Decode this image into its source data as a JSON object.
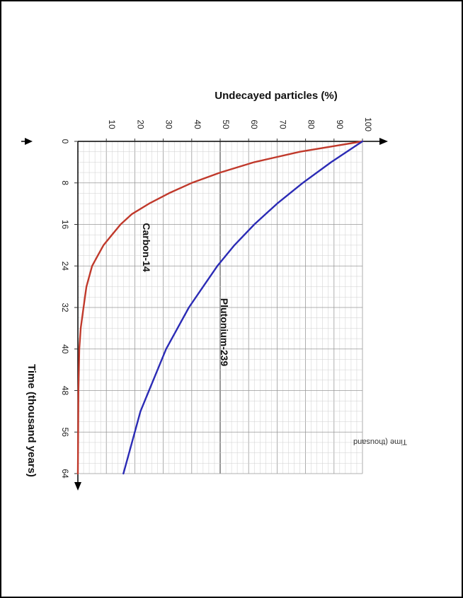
{
  "chart_data": {
    "type": "line",
    "orientation": "rotated 90 degrees clockwise",
    "xlabel": "Time (thousand years)",
    "ylabel": "Undecayed particles (%)",
    "xlim": [
      0,
      64
    ],
    "ylim": [
      0,
      100
    ],
    "x_ticks": [
      "0",
      "8",
      "16",
      "24",
      "32",
      "40",
      "48",
      "56",
      "64"
    ],
    "y_ticks": [
      "10",
      "20",
      "30",
      "40",
      "50",
      "60",
      "70",
      "80",
      "90",
      "100"
    ],
    "grid": true,
    "series": [
      {
        "name": "Carbon-14",
        "color": "#c0392b",
        "x": [
          0,
          2,
          4,
          6,
          8,
          10,
          12,
          14,
          16,
          18,
          20,
          22,
          24,
          26,
          28,
          30,
          32,
          36,
          40,
          48,
          56,
          64
        ],
        "values": [
          100,
          78,
          62,
          50,
          40,
          32,
          25,
          19,
          15,
          12,
          9,
          7,
          5,
          4,
          3,
          2.5,
          2,
          1,
          0.5,
          0.2,
          0.1,
          0
        ]
      },
      {
        "name": "Plutonium-239",
        "color": "#2b2bb5",
        "x": [
          0,
          4,
          8,
          12,
          16,
          20,
          24,
          28,
          32,
          36,
          40,
          44,
          48,
          52,
          56,
          60,
          64
        ],
        "values": [
          100,
          89,
          79,
          70,
          62,
          55,
          49,
          44,
          39,
          35,
          31,
          28,
          25,
          22,
          20,
          18,
          16
        ]
      }
    ],
    "edge_text": "Time (thousand"
  }
}
